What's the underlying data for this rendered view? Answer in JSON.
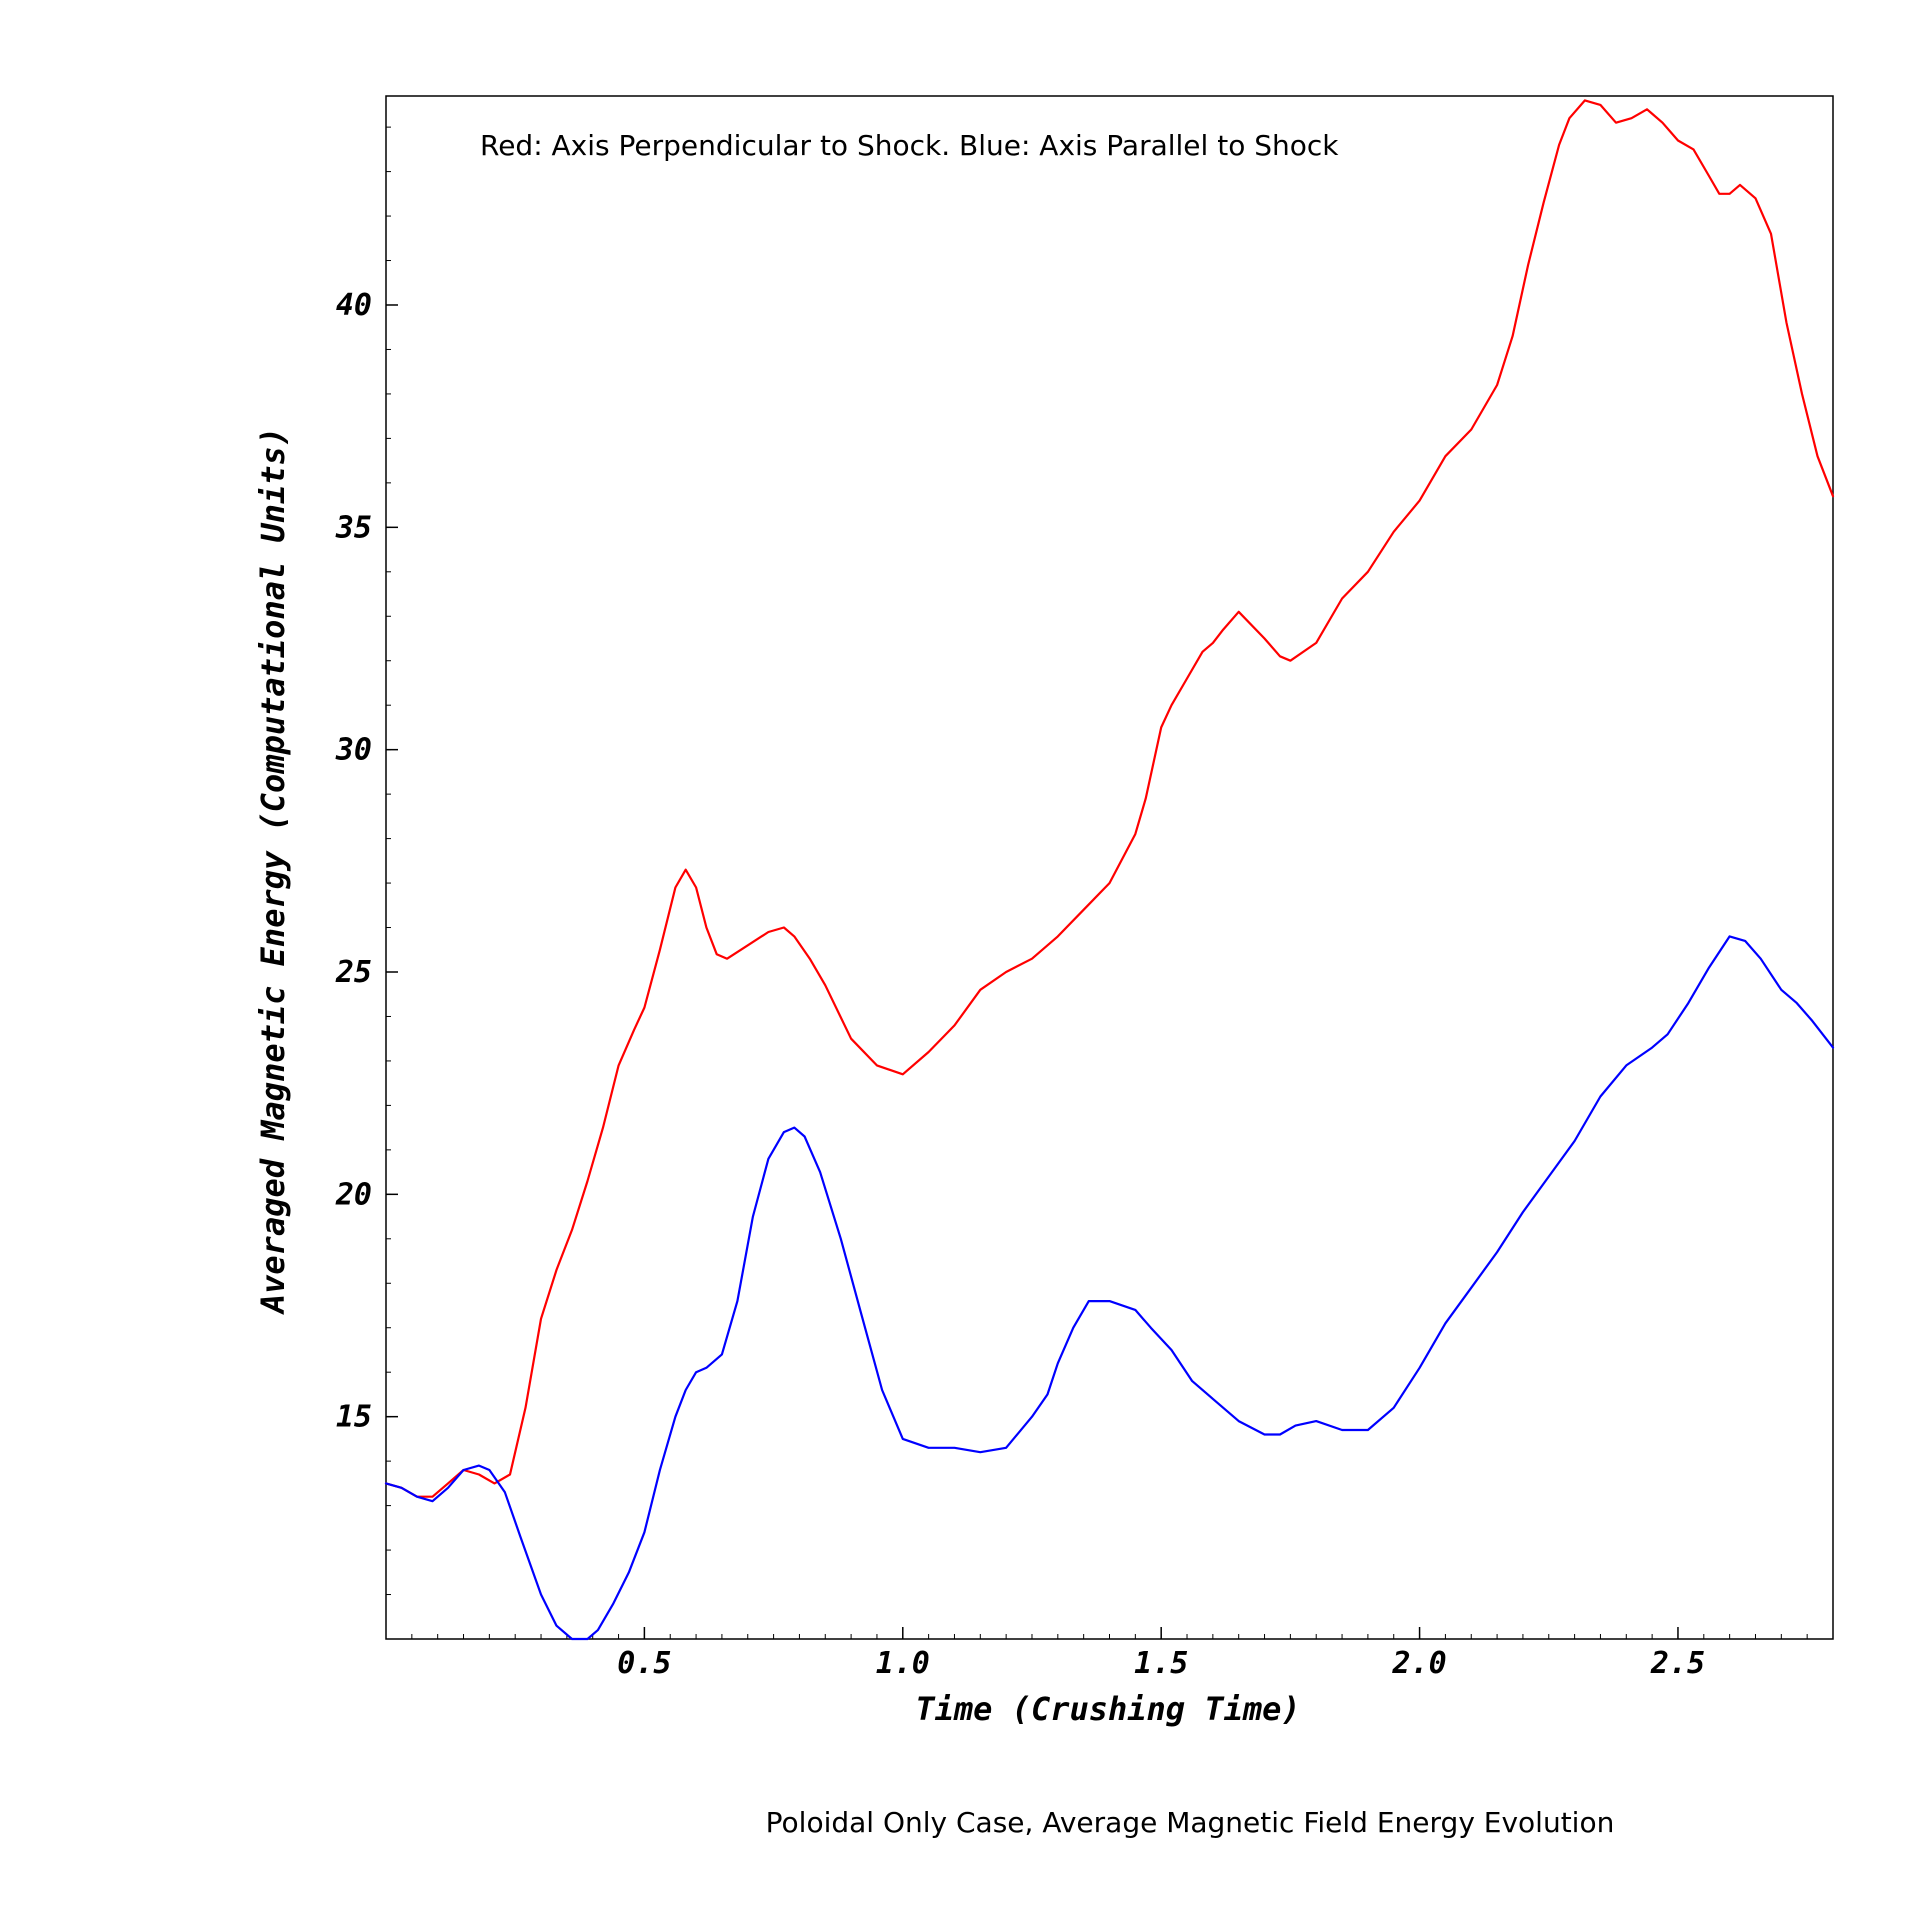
{
  "chart_data": {
    "type": "line",
    "title": "Poloidal Only Case, Average Magnetic Field Energy Evolution",
    "annotation": "Red: Axis Perpendicular to Shock. Blue: Axis Parallel to Shock",
    "xlabel": "Time (Crushing Time)",
    "ylabel": "Averaged Magnetic Energy (Computational Units)",
    "xlim": [
      0.0,
      2.8
    ],
    "ylim": [
      10.0,
      44.7
    ],
    "xticks": [
      0.5,
      1.0,
      1.5,
      2.0,
      2.5
    ],
    "xtick_labels": [
      "0.5",
      "1.0",
      "1.5",
      "2.0",
      "2.5"
    ],
    "yticks": [
      15,
      20,
      25,
      30,
      35,
      40
    ],
    "ytick_labels": [
      "15",
      "20",
      "25",
      "30",
      "35",
      "40"
    ],
    "grid": false,
    "colors": {
      "red": "#ff0000",
      "blue": "#0000ff"
    },
    "series": [
      {
        "color": "#ff0000",
        "x": [
          0.0,
          0.03,
          0.06,
          0.09,
          0.12,
          0.15,
          0.18,
          0.21,
          0.24,
          0.27,
          0.3,
          0.33,
          0.36,
          0.39,
          0.42,
          0.45,
          0.48,
          0.5,
          0.53,
          0.56,
          0.58,
          0.6,
          0.62,
          0.64,
          0.66,
          0.7,
          0.74,
          0.77,
          0.79,
          0.82,
          0.85,
          0.9,
          0.95,
          1.0,
          1.05,
          1.1,
          1.15,
          1.2,
          1.25,
          1.3,
          1.35,
          1.4,
          1.45,
          1.47,
          1.5,
          1.52,
          1.55,
          1.58,
          1.6,
          1.62,
          1.65,
          1.7,
          1.73,
          1.75,
          1.8,
          1.85,
          1.9,
          1.95,
          2.0,
          2.05,
          2.1,
          2.15,
          2.18,
          2.21,
          2.24,
          2.27,
          2.29,
          2.32,
          2.35,
          2.38,
          2.41,
          2.44,
          2.47,
          2.5,
          2.53,
          2.56,
          2.58,
          2.6,
          2.62,
          2.65,
          2.68,
          2.71,
          2.74,
          2.77,
          2.8
        ],
        "values": [
          13.5,
          13.4,
          13.2,
          13.2,
          13.5,
          13.8,
          13.7,
          13.5,
          13.7,
          15.2,
          17.2,
          18.3,
          19.2,
          20.3,
          21.5,
          22.9,
          23.7,
          24.2,
          25.5,
          26.9,
          27.3,
          26.9,
          26.0,
          25.4,
          25.3,
          25.6,
          25.9,
          26.0,
          25.8,
          25.3,
          24.7,
          23.5,
          22.9,
          22.7,
          23.2,
          23.8,
          24.6,
          25.0,
          25.3,
          25.8,
          26.4,
          27.0,
          28.1,
          28.9,
          30.5,
          31.0,
          31.6,
          32.2,
          32.4,
          32.7,
          33.1,
          32.5,
          32.1,
          32.0,
          32.4,
          33.4,
          34.0,
          34.9,
          35.6,
          36.6,
          37.2,
          38.2,
          39.3,
          40.9,
          42.3,
          43.6,
          44.2,
          44.6,
          44.5,
          44.1,
          44.2,
          44.4,
          44.1,
          43.7,
          43.5,
          42.9,
          42.5,
          42.5,
          42.7,
          42.4,
          41.6,
          39.6,
          38.0,
          36.6,
          35.7
        ]
      },
      {
        "color": "#0000ff",
        "x": [
          0.0,
          0.03,
          0.06,
          0.09,
          0.12,
          0.15,
          0.18,
          0.2,
          0.23,
          0.26,
          0.3,
          0.33,
          0.36,
          0.39,
          0.41,
          0.44,
          0.47,
          0.5,
          0.53,
          0.56,
          0.58,
          0.6,
          0.62,
          0.65,
          0.68,
          0.71,
          0.74,
          0.77,
          0.79,
          0.81,
          0.84,
          0.88,
          0.92,
          0.96,
          1.0,
          1.05,
          1.1,
          1.15,
          1.2,
          1.25,
          1.28,
          1.3,
          1.33,
          1.36,
          1.4,
          1.45,
          1.48,
          1.52,
          1.56,
          1.6,
          1.65,
          1.7,
          1.73,
          1.76,
          1.8,
          1.85,
          1.9,
          1.95,
          2.0,
          2.05,
          2.1,
          2.15,
          2.2,
          2.25,
          2.3,
          2.35,
          2.4,
          2.45,
          2.48,
          2.52,
          2.56,
          2.6,
          2.63,
          2.66,
          2.7,
          2.73,
          2.76,
          2.8
        ],
        "values": [
          13.5,
          13.4,
          13.2,
          13.1,
          13.4,
          13.8,
          13.9,
          13.8,
          13.3,
          12.3,
          11.0,
          10.3,
          10.0,
          10.0,
          10.2,
          10.8,
          11.5,
          12.4,
          13.8,
          15.0,
          15.6,
          16.0,
          16.1,
          16.4,
          17.6,
          19.5,
          20.8,
          21.4,
          21.5,
          21.3,
          20.5,
          19.0,
          17.3,
          15.6,
          14.5,
          14.3,
          14.3,
          14.2,
          14.3,
          15.0,
          15.5,
          16.2,
          17.0,
          17.6,
          17.6,
          17.4,
          17.0,
          16.5,
          15.8,
          15.4,
          14.9,
          14.6,
          14.6,
          14.8,
          14.9,
          14.7,
          14.7,
          15.2,
          16.1,
          17.1,
          17.9,
          18.7,
          19.6,
          20.4,
          21.2,
          22.2,
          22.9,
          23.3,
          23.6,
          24.3,
          25.1,
          25.8,
          25.7,
          25.3,
          24.6,
          24.3,
          23.9,
          23.3
        ]
      }
    ]
  }
}
